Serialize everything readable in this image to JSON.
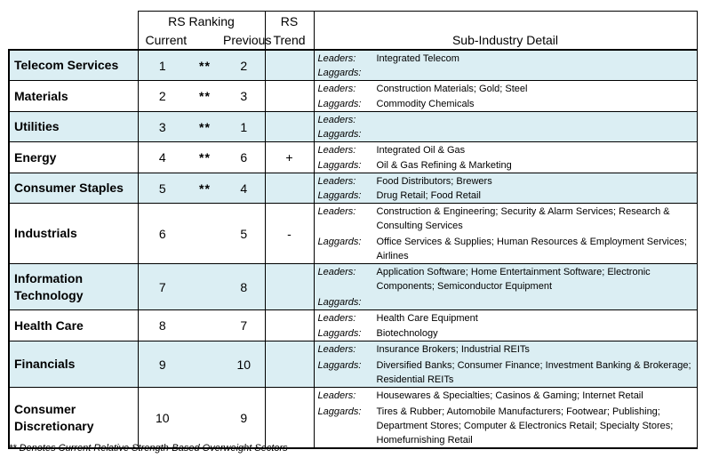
{
  "header": {
    "rs_ranking": "RS Ranking",
    "current": "Current",
    "previous": "Previous",
    "rs": "RS",
    "trend": "Trend",
    "sub_industry": "Sub-Industry Detail"
  },
  "labels": {
    "leaders": "Leaders:",
    "laggards": "Laggards:"
  },
  "rows": [
    {
      "sector": "Telecom Services",
      "current": "1",
      "stars": "**",
      "previous": "2",
      "trend": "",
      "leaders": "Integrated Telecom",
      "laggards": ""
    },
    {
      "sector": "Materials",
      "current": "2",
      "stars": "**",
      "previous": "3",
      "trend": "",
      "leaders": "Construction Materials; Gold; Steel",
      "laggards": "Commodity Chemicals"
    },
    {
      "sector": "Utilities",
      "current": "3",
      "stars": "**",
      "previous": "1",
      "trend": "",
      "leaders": "",
      "laggards": ""
    },
    {
      "sector": "Energy",
      "current": "4",
      "stars": "**",
      "previous": "6",
      "trend": "+",
      "leaders": "Integrated Oil & Gas",
      "laggards": "Oil & Gas Refining & Marketing"
    },
    {
      "sector": "Consumer Staples",
      "current": "5",
      "stars": "**",
      "previous": "4",
      "trend": "",
      "leaders": "Food Distributors; Brewers",
      "laggards": "Drug Retail; Food Retail"
    },
    {
      "sector": "Industrials",
      "current": "6",
      "stars": "",
      "previous": "5",
      "trend": "-",
      "leaders": "Construction & Engineering; Security & Alarm Services; Research & Consulting Services",
      "laggards": "Office Services & Supplies; Human Resources & Employment Services; Airlines"
    },
    {
      "sector": "Information Technology",
      "current": "7",
      "stars": "",
      "previous": "8",
      "trend": "",
      "leaders": "Application Software; Home Entertainment Software; Electronic Components; Semiconductor Equipment",
      "laggards": ""
    },
    {
      "sector": "Health Care",
      "current": "8",
      "stars": "",
      "previous": "7",
      "trend": "",
      "leaders": "Health Care Equipment",
      "laggards": "Biotechnology"
    },
    {
      "sector": "Financials",
      "current": "9",
      "stars": "",
      "previous": "10",
      "trend": "",
      "leaders": "Insurance Brokers; Industrial REITs",
      "laggards": "Diversified Banks; Consumer Finance; Investment Banking & Brokerage; Residential REITs"
    },
    {
      "sector": "Consumer Discretionary",
      "current": "10",
      "stars": "",
      "previous": "9",
      "trend": "",
      "leaders": "Housewares & Specialties; Casinos & Gaming; Internet Retail",
      "laggards": "Tires & Rubber; Automobile Manufacturers; Footwear; Publishing; Department Stores; Computer & Electronics Retail; Specialty Stores; Homefurnishing Retail"
    }
  ],
  "footnote": "** Denotes Current Relative Strength-Based Overweight Sectors"
}
